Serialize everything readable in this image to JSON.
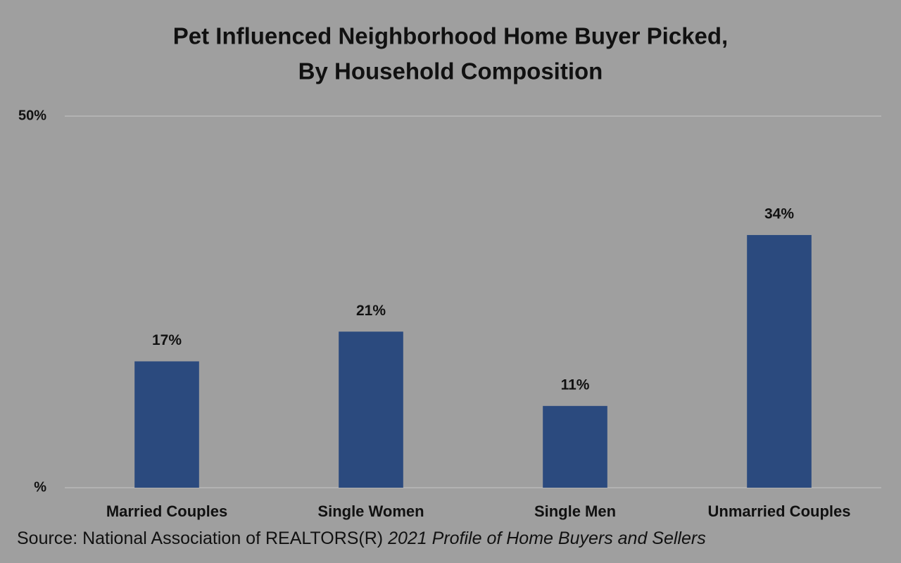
{
  "chart_data": {
    "type": "bar",
    "title": [
      "Pet Influenced Neighborhood Home Buyer Picked,",
      "By Household Composition"
    ],
    "categories": [
      "Married Couples",
      "Single Women",
      "Single Men",
      "Unmarried Couples"
    ],
    "values": [
      17,
      21,
      11,
      34
    ],
    "value_labels": [
      "17%",
      "21%",
      "11%",
      "34%"
    ],
    "color": "#2b4a7e",
    "ylim": [
      0,
      50
    ],
    "yticks": [
      {
        "value": 0,
        "label": "%"
      },
      {
        "value": 50,
        "label": "50%"
      }
    ],
    "grid": true,
    "source": "Source: National Association of REALTORS(R)",
    "source_title": "2021 Profile of Home Buyers and Sellers"
  }
}
